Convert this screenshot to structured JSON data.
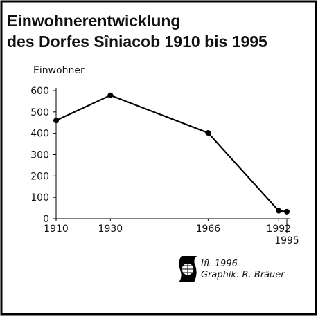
{
  "chart_data": {
    "type": "line",
    "title": [
      "Einwohnerentwicklung",
      "des Dorfes Sîniacob 1910 bis 1995"
    ],
    "y_label": "Einwohner",
    "x": [
      1910,
      1930,
      1966,
      1992,
      1995
    ],
    "series": [
      {
        "name": "Einwohner",
        "color": "#000000",
        "values": [
          460,
          578,
          402,
          37,
          33
        ]
      }
    ],
    "xlim": [
      1910,
      1995
    ],
    "xticks": [
      1910,
      1930,
      1966,
      1992,
      1995
    ],
    "ylim": [
      0,
      600
    ],
    "yticks": [
      0,
      100,
      200,
      300,
      400,
      500,
      600
    ],
    "annotations": [
      "IfL 1996",
      "Graphik: R. Bräuer"
    ]
  }
}
